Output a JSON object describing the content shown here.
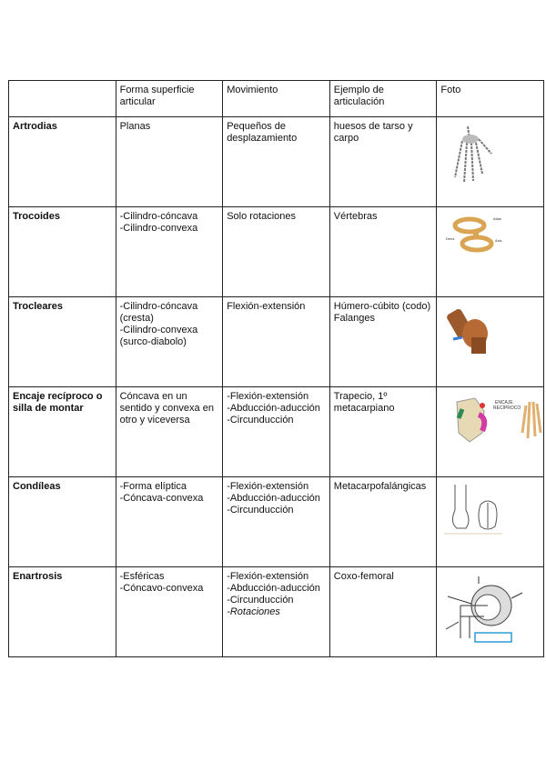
{
  "table": {
    "headers": [
      "",
      "Forma superficie articular",
      "Movimiento",
      "Ejemplo de articulación",
      "Foto"
    ],
    "rows": [
      {
        "name": "Artrodias",
        "forma": [
          "Planas"
        ],
        "movimiento": [
          "Pequeños de desplazamiento"
        ],
        "ejemplo": [
          "huesos de tarso y carpo"
        ],
        "foto_icon": "hand-bones-image"
      },
      {
        "name": "Trocoides",
        "forma": [
          "-Cilindro-cóncava",
          "-Cilindro-convexa"
        ],
        "movimiento": [
          "Solo rotaciones"
        ],
        "ejemplo": [
          "Vértebras"
        ],
        "foto_icon": "vertebrae-image"
      },
      {
        "name": "Trocleares",
        "forma": [
          "-Cilindro-cóncava (cresta)",
          "-Cilindro-convexa (surco-diabolo)"
        ],
        "movimiento": [
          "Flexión-extensión"
        ],
        "ejemplo": [
          "Húmero-cúbito (codo)",
          "Falanges"
        ],
        "foto_icon": "trochlear-joint-image"
      },
      {
        "name": "Encaje recíproco o silla de montar",
        "forma": [
          "Cóncava en un sentido y convexa en otro y viceversa"
        ],
        "movimiento": [
          "-Flexión-extensión",
          "-Abducción-aducción",
          "-Circunducción"
        ],
        "ejemplo": [
          "Trapecio, 1º metacarpiano"
        ],
        "foto_icon": "saddle-joint-image"
      },
      {
        "name": "Condíleas",
        "forma": [
          "-Forma elíptica",
          "-Cóncava-convexa"
        ],
        "movimiento": [
          "-Flexión-extensión",
          "-Abducción-aducción",
          "-Circunducción"
        ],
        "ejemplo": [
          "Metacarpofalángicas"
        ],
        "foto_icon": "condylar-joint-image"
      },
      {
        "name": "Enartrosis",
        "forma": [
          "-Esféricas",
          "-Cóncavo-convexa"
        ],
        "movimiento": [
          "-Flexión-extensión",
          "-Abducción-aducción",
          "-Circunducción",
          "-Rotaciones"
        ],
        "ejemplo": [
          "Coxo-femoral"
        ],
        "foto_icon": "ball-socket-joint-image"
      }
    ]
  }
}
